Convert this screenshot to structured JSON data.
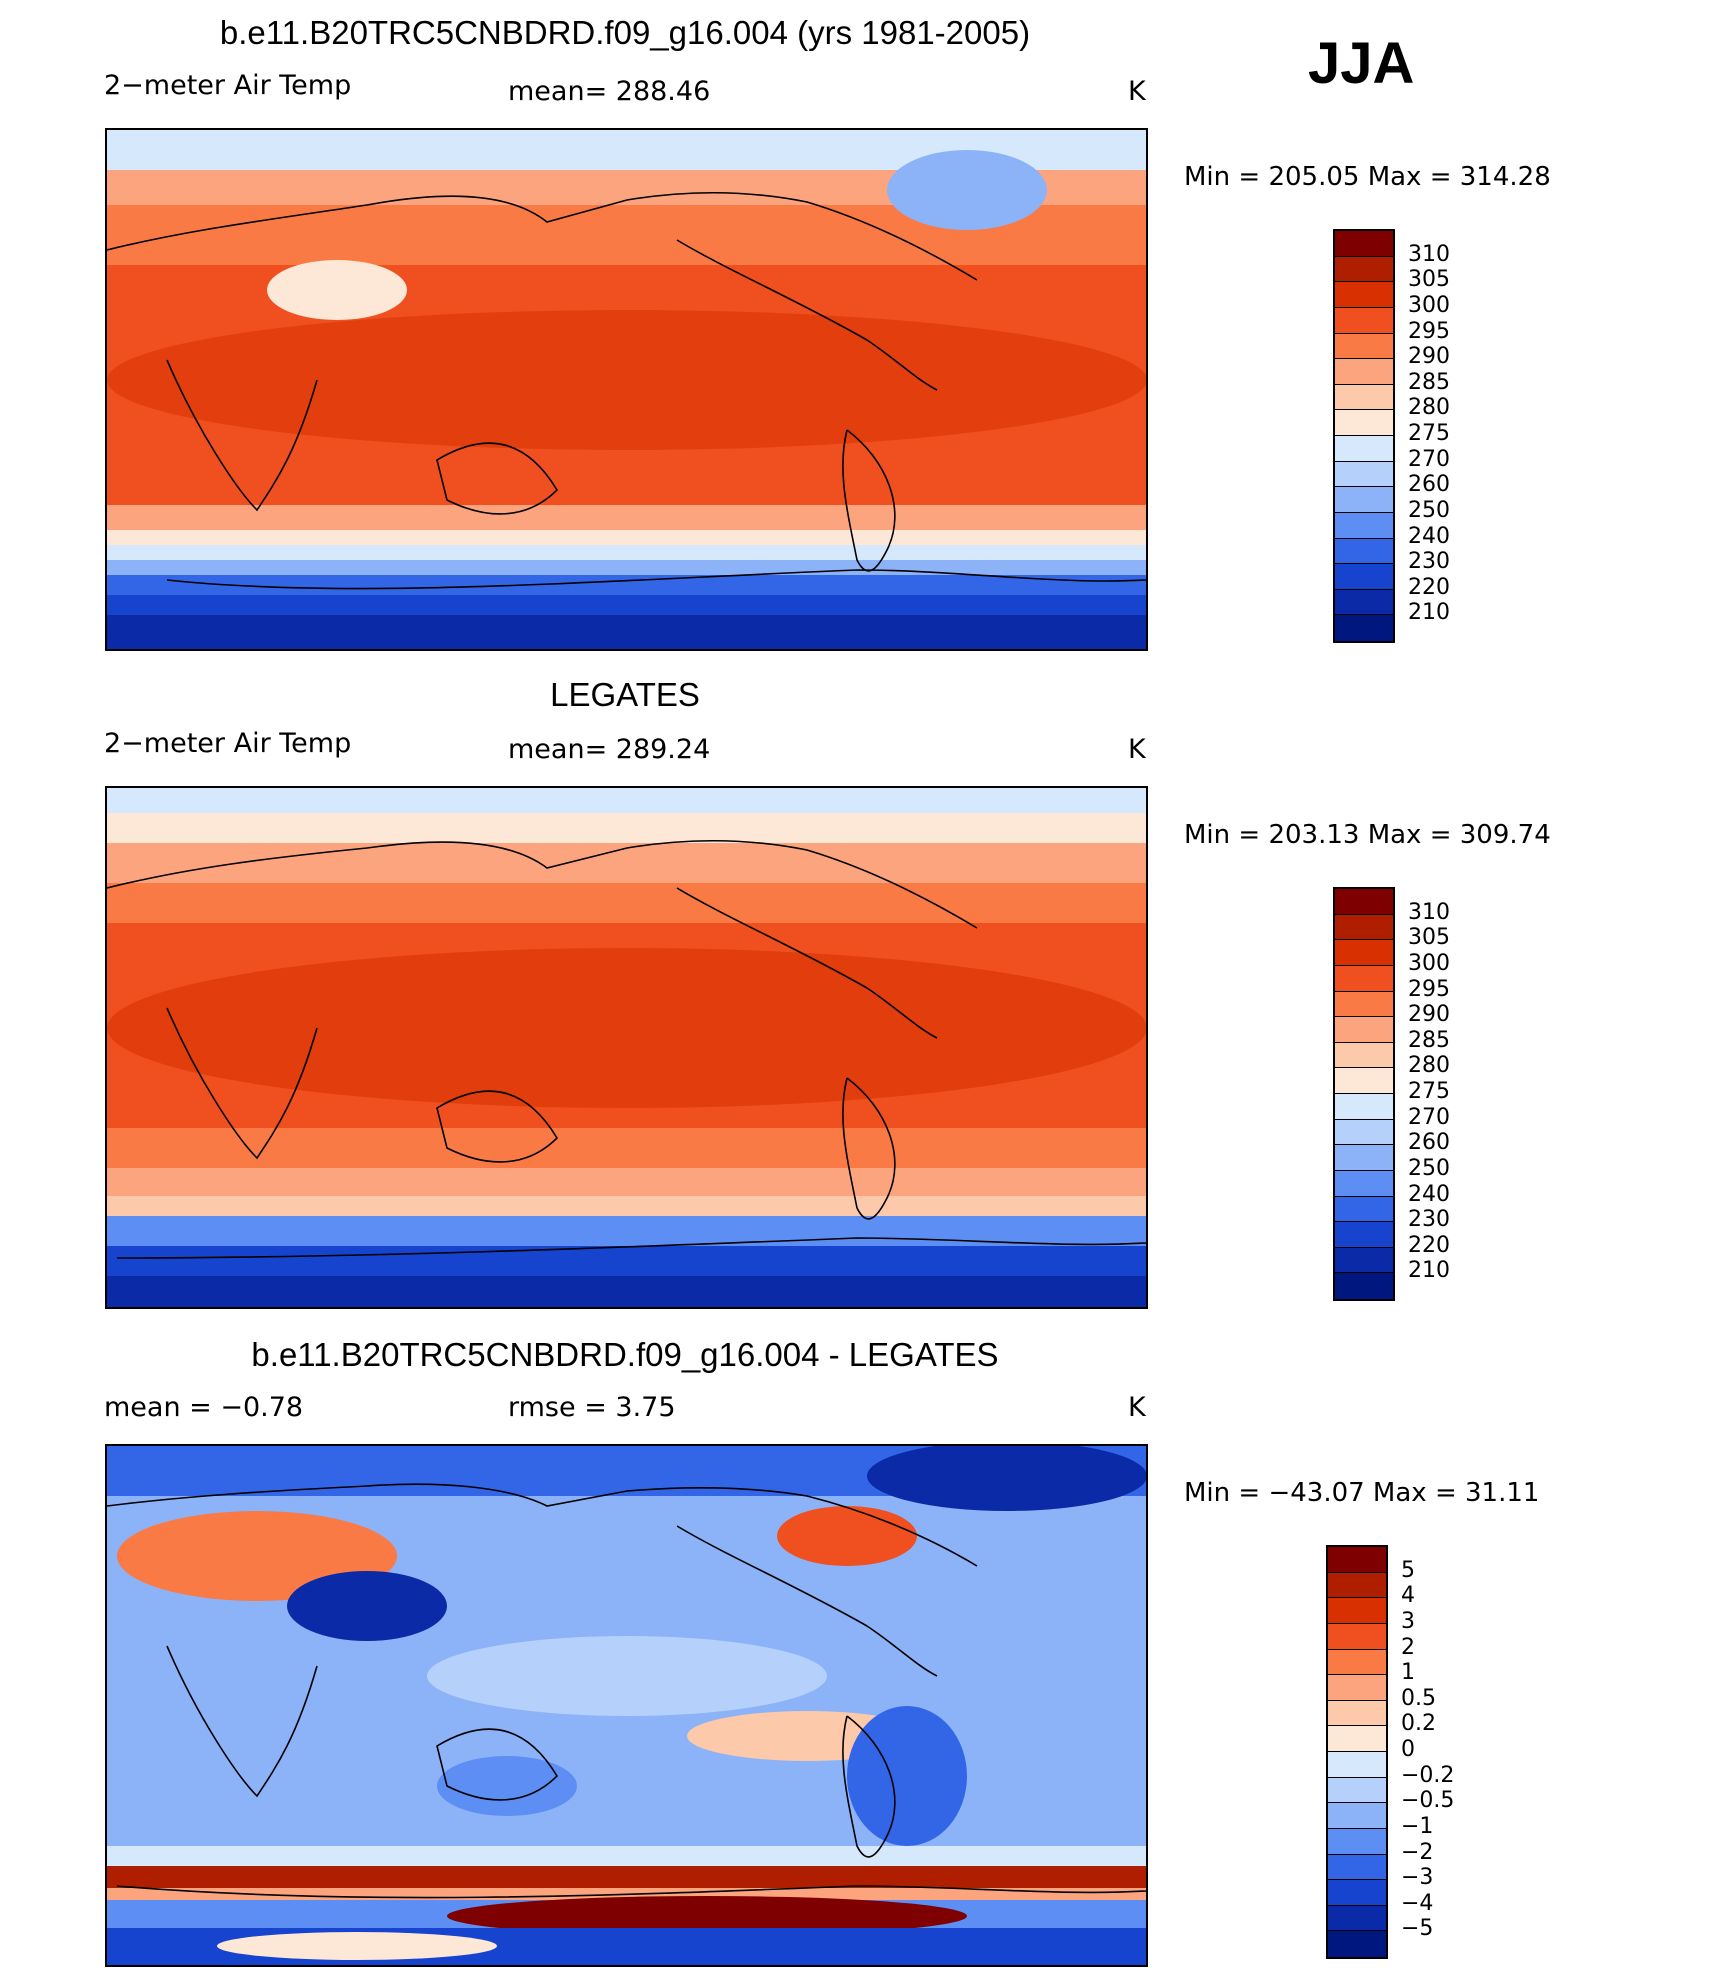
{
  "season": "JJA",
  "panels": [
    {
      "title": "b.e11.B20TRC5CNBDRD.f09_g16.004 (yrs 1981-2005)",
      "left_label": "2−meter Air Temp",
      "center_label": "mean=  288.46",
      "right_label": "K",
      "minmax": "Min  =  205.05  Max  =  314.28",
      "colorbar_ticks": [
        "310",
        "305",
        "300",
        "295",
        "290",
        "285",
        "280",
        "275",
        "270",
        "260",
        "250",
        "240",
        "230",
        "220",
        "210"
      ],
      "colors": [
        "#7f0000",
        "#b01e00",
        "#d83000",
        "#f05020",
        "#fa7a45",
        "#fca47e",
        "#fdc9ab",
        "#fde7d6",
        "#d6e8fb",
        "#b4d0fb",
        "#8cb2f8",
        "#5d8ef3",
        "#3366e6",
        "#1744cf",
        "#0a2aa8",
        "#001780"
      ]
    },
    {
      "title": "LEGATES",
      "left_label": "2−meter Air Temp",
      "center_label": "mean=  289.24",
      "right_label": "K",
      "minmax": "Min  =  203.13  Max  =  309.74",
      "colorbar_ticks": [
        "310",
        "305",
        "300",
        "295",
        "290",
        "285",
        "280",
        "275",
        "270",
        "260",
        "250",
        "240",
        "230",
        "220",
        "210"
      ],
      "colors": [
        "#7f0000",
        "#b01e00",
        "#d83000",
        "#f05020",
        "#fa7a45",
        "#fca47e",
        "#fdc9ab",
        "#fde7d6",
        "#d6e8fb",
        "#b4d0fb",
        "#8cb2f8",
        "#5d8ef3",
        "#3366e6",
        "#1744cf",
        "#0a2aa8",
        "#001780"
      ]
    },
    {
      "title": "b.e11.B20TRC5CNBDRD.f09_g16.004 - LEGATES",
      "left_label": "mean =    −0.78",
      "center_label": "rmse =     3.75",
      "right_label": "K",
      "minmax": "Min  =  −43.07  Max  =    31.11",
      "colorbar_ticks": [
        "5",
        "4",
        "3",
        "2",
        "1",
        "0.5",
        "0.2",
        "0",
        "−0.2",
        "−0.5",
        "−1",
        "−2",
        "−3",
        "−4",
        "−5"
      ],
      "colors": [
        "#7f0000",
        "#b01e00",
        "#d83000",
        "#f05020",
        "#fa7a45",
        "#fca47e",
        "#fdc9ab",
        "#fde7d6",
        "#d6e8fb",
        "#b4d0fb",
        "#8cb2f8",
        "#5d8ef3",
        "#3366e6",
        "#1744cf",
        "#0a2aa8",
        "#001780"
      ]
    }
  ]
}
